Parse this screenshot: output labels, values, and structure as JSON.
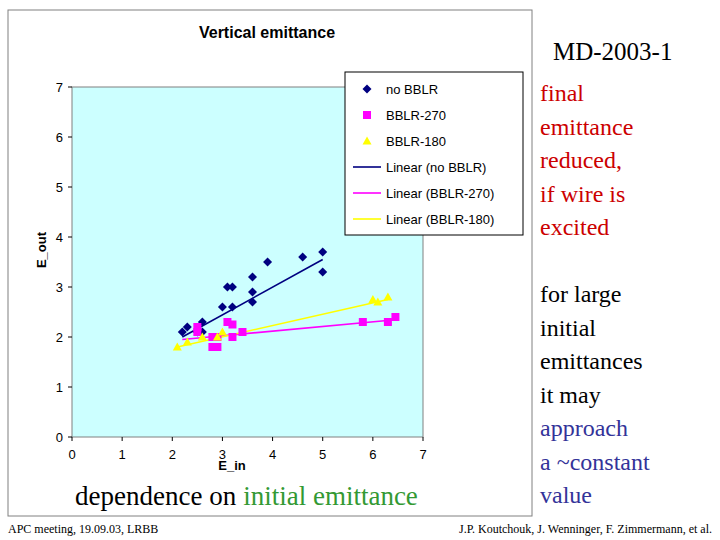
{
  "chart_data": {
    "type": "scatter",
    "title": "Vertical emittance",
    "x_label": "E_in",
    "y_label": "E_out",
    "xlim": [
      0,
      7
    ],
    "ylim": [
      0,
      7
    ],
    "xticks": [
      0,
      1,
      2,
      3,
      4,
      5,
      6,
      7
    ],
    "yticks": [
      0,
      1,
      2,
      3,
      4,
      5,
      6,
      7
    ],
    "grid": false,
    "legend": "top-right",
    "series": [
      {
        "name": "no BBLR",
        "type": "scatter",
        "color": "#000080",
        "marker": "diamond",
        "x": [
          2.2,
          2.3,
          2.5,
          2.6,
          2.6,
          3.0,
          3.1,
          3.2,
          3.2,
          3.6,
          3.6,
          3.6,
          3.9,
          4.6,
          5.0,
          5.0
        ],
        "values": [
          2.1,
          2.2,
          2.1,
          2.3,
          2.1,
          2.6,
          3.0,
          3.0,
          2.6,
          3.2,
          2.9,
          2.7,
          3.5,
          3.6,
          3.7,
          3.3
        ]
      },
      {
        "name": "BBLR-270",
        "type": "scatter",
        "color": "#ff00ff",
        "marker": "square",
        "x": [
          2.5,
          2.5,
          2.8,
          2.9,
          2.8,
          2.9,
          3.1,
          3.2,
          3.2,
          3.4,
          5.8,
          6.3,
          6.45
        ],
        "values": [
          2.1,
          2.2,
          1.8,
          1.8,
          2.0,
          2.0,
          2.3,
          2.0,
          2.25,
          2.1,
          2.3,
          2.3,
          2.4
        ]
      },
      {
        "name": "BBLR-180",
        "type": "scatter",
        "color": "#ffff00",
        "marker": "triangle",
        "x": [
          2.1,
          2.3,
          2.6,
          2.9,
          3.0,
          6.0,
          6.1,
          6.3
        ],
        "values": [
          1.8,
          1.9,
          2.0,
          2.0,
          2.1,
          2.75,
          2.7,
          2.8
        ]
      },
      {
        "name": "Linear (no BBLR)",
        "type": "line",
        "color": "#000080",
        "line_style": "solid",
        "x": [
          2.2,
          5.0
        ],
        "values": [
          2.0,
          3.55
        ]
      },
      {
        "name": "Linear (BBLR-270)",
        "type": "line",
        "color": "#ff00ff",
        "line_style": "solid",
        "x": [
          2.2,
          6.5
        ],
        "values": [
          1.95,
          2.35
        ]
      },
      {
        "name": "Linear (BBLR-180)",
        "type": "line",
        "color": "#ffff00",
        "line_style": "solid",
        "x": [
          2.1,
          6.3
        ],
        "values": [
          1.8,
          2.75
        ]
      }
    ]
  },
  "slide": {
    "heading": "MD-2003-1",
    "annotations": [
      {
        "lines": [
          "final",
          "emittance",
          "reduced,",
          "if wire is",
          "excited"
        ],
        "color": "#cc0000"
      },
      {
        "lines": [
          "for large",
          "initial",
          "emittances",
          "it may"
        ],
        "color": "#000000"
      },
      {
        "lines": [
          "approach",
          "a ~constant",
          "value"
        ],
        "color": "#333399"
      }
    ],
    "caption": [
      {
        "text": "dependence on",
        "color": "#000000"
      },
      {
        "text": "initial emittance",
        "color": "#339933"
      }
    ],
    "footer_left": "APC meeting, 19.09.03, LRBB",
    "footer_right": "J.P. Koutchouk, J. Wenninger, F. Zimmermann, et al."
  }
}
